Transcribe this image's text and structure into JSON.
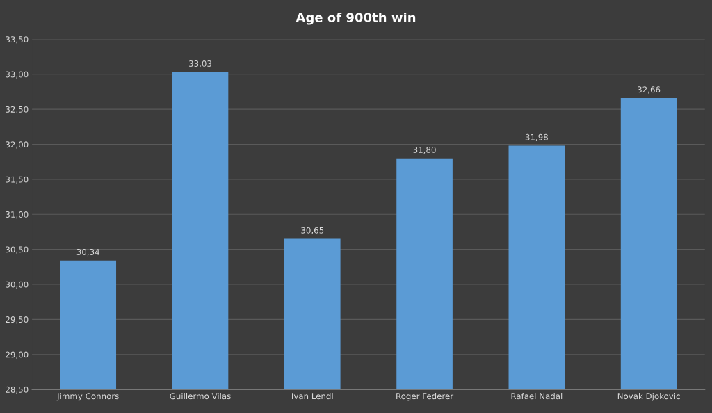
{
  "chart_data": {
    "type": "bar",
    "title": "Age of 900th win",
    "categories": [
      "Jimmy Connors",
      "Guillermo Vilas",
      "Ivan Lendl",
      "Roger Federer",
      "Rafael Nadal",
      "Novak Djokovic"
    ],
    "values": [
      30.34,
      33.03,
      30.65,
      31.8,
      31.98,
      32.66
    ],
    "value_labels": [
      "30,34",
      "33,03",
      "30,65",
      "31,80",
      "31,98",
      "32,66"
    ],
    "color": "#5b9bd5",
    "ylim": [
      28.5,
      33.5
    ],
    "yticks": [
      {
        "value": 28.5,
        "label": "28,50"
      },
      {
        "value": 29.0,
        "label": "29,00"
      },
      {
        "value": 29.5,
        "label": "29,50"
      },
      {
        "value": 30.0,
        "label": "30,00"
      },
      {
        "value": 30.5,
        "label": "30,50"
      },
      {
        "value": 31.0,
        "label": "31,00"
      },
      {
        "value": 31.5,
        "label": "31,50"
      },
      {
        "value": 32.0,
        "label": "32,00"
      },
      {
        "value": 32.5,
        "label": "32,50"
      },
      {
        "value": 33.0,
        "label": "33,00"
      },
      {
        "value": 33.5,
        "label": "33,50"
      }
    ],
    "grid": "y"
  }
}
